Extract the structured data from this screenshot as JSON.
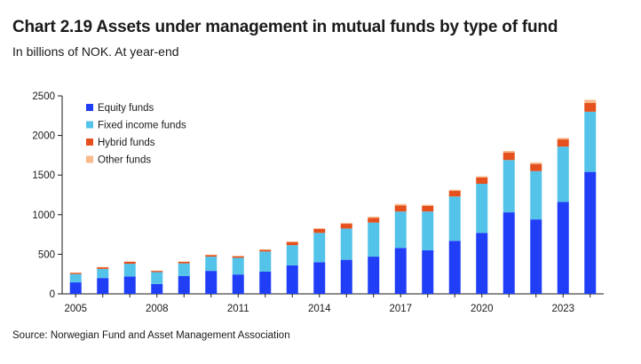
{
  "header": {
    "title": "Chart 2.19 Assets under management in mutual funds by type of fund",
    "subtitle": "In billions of NOK. At year-end"
  },
  "footer": {
    "source": "Source: Norwegian Fund and Asset Management Association"
  },
  "chart_data": {
    "type": "bar",
    "stacked": true,
    "title": "Chart 2.19 Assets under management in mutual funds by type of fund",
    "subtitle": "In billions of NOK. At year-end",
    "xlabel": "",
    "ylabel": "",
    "ylim": [
      0,
      2500
    ],
    "yticks": [
      0,
      500,
      1000,
      1500,
      2000,
      2500
    ],
    "xtick_labels": [
      "2005",
      "2008",
      "2011",
      "2014",
      "2017",
      "2020",
      "2023"
    ],
    "categories": [
      "2005",
      "2006",
      "2007",
      "2008",
      "2009",
      "2010",
      "2011",
      "2012",
      "2013",
      "2014",
      "2015",
      "2016",
      "2017",
      "2018",
      "2019",
      "2020",
      "2021",
      "2022",
      "2023",
      "2024"
    ],
    "legend_position": "top-left",
    "grid": false,
    "series": [
      {
        "name": "Equity funds",
        "color": "#1f3ef5",
        "values": [
          145,
          200,
          220,
          125,
          225,
          290,
          245,
          280,
          360,
          400,
          430,
          470,
          580,
          550,
          670,
          770,
          1030,
          940,
          1160,
          1540
        ]
      },
      {
        "name": "Fixed income funds",
        "color": "#54c3ea",
        "values": [
          105,
          115,
          160,
          150,
          160,
          180,
          210,
          255,
          255,
          370,
          395,
          430,
          460,
          490,
          560,
          620,
          660,
          610,
          700,
          760
        ]
      },
      {
        "name": "Hybrid funds",
        "color": "#e5501d",
        "values": [
          15,
          20,
          25,
          15,
          20,
          20,
          20,
          20,
          40,
          50,
          60,
          60,
          75,
          70,
          70,
          80,
          95,
          90,
          90,
          110
        ]
      },
      {
        "name": "Other funds",
        "color": "#f8b98b",
        "values": [
          5,
          5,
          5,
          5,
          5,
          5,
          5,
          5,
          5,
          10,
          10,
          15,
          20,
          15,
          15,
          15,
          20,
          20,
          20,
          40
        ]
      }
    ]
  }
}
